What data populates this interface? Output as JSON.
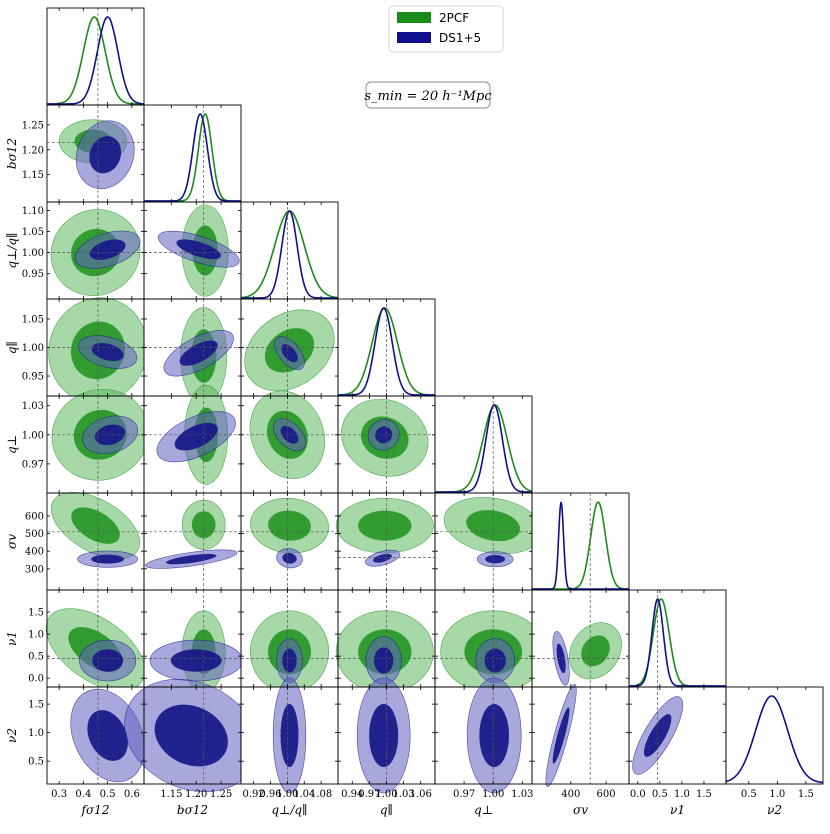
{
  "chart_data": {
    "type": "corner",
    "annotation": "s_min = 20 h⁻¹Mpc",
    "legend": [
      {
        "name": "2PCF",
        "color": "#1a8c1a"
      },
      {
        "name": "DS1+5",
        "color": "#10108c"
      }
    ],
    "params": [
      {
        "id": "fs12",
        "label": "fσ12",
        "range": [
          0.25,
          0.65
        ],
        "ticks": [
          0.3,
          0.4,
          0.5,
          0.6
        ],
        "tick_labels": [
          "0.3",
          "0.4",
          "0.5",
          "0.6"
        ],
        "truth": 0.46
      },
      {
        "id": "bs12",
        "label": "bσ12",
        "range": [
          1.095,
          1.29
        ],
        "ticks": [
          1.15,
          1.2,
          1.25
        ],
        "tick_labels": [
          "1.15",
          "1.20",
          "1.25"
        ],
        "truth": 1.215
      },
      {
        "id": "qratio",
        "label": "q⊥/q∥",
        "range": [
          0.89,
          1.12
        ],
        "ticks": [
          0.92,
          0.96,
          1.0,
          1.04,
          1.08
        ],
        "x_tick_labels": [
          "0.92",
          "0.96",
          "1.00",
          "1.04",
          "1.08"
        ],
        "y_ticks": [
          0.95,
          1.0,
          1.05,
          1.1
        ],
        "y_tick_labels": [
          "0.95",
          "1.00",
          "1.05",
          "1.10"
        ],
        "truth": 1.0
      },
      {
        "id": "qpar",
        "label": "q∥",
        "range": [
          0.915,
          1.085
        ],
        "ticks": [
          0.94,
          0.97,
          1.0,
          1.03,
          1.06
        ],
        "x_tick_labels": [
          "0.94",
          "0.97",
          "1.00",
          "1.03",
          "1.06"
        ],
        "y_ticks": [
          0.95,
          1.0,
          1.05
        ],
        "y_tick_labels": [
          "0.95",
          "1.00",
          "1.05"
        ],
        "truth": 1.0
      },
      {
        "id": "qperp",
        "label": "q⊥",
        "range": [
          0.94,
          1.04
        ],
        "ticks": [
          0.97,
          1.0,
          1.03
        ],
        "tick_labels": [
          "0.97",
          "1.00",
          "1.03"
        ],
        "truth": 1.0
      },
      {
        "id": "sigv",
        "label": "σv",
        "range": [
          180,
          730
        ],
        "ticks": [
          300,
          400,
          500,
          600
        ],
        "y_tick_labels": [
          "300",
          "400",
          "500",
          "600"
        ],
        "x_ticks": [
          400,
          600
        ],
        "x_tick_labels": [
          "400",
          "600"
        ],
        "truth": 510,
        "truth_alt": 365
      },
      {
        "id": "nu1",
        "label": "ν1",
        "range": [
          -0.2,
          2.0
        ],
        "ticks": [
          0.0,
          0.5,
          1.0,
          1.5
        ],
        "tick_labels": [
          "0.0",
          "0.5",
          "1.0",
          "1.5"
        ],
        "truth": 0.45
      },
      {
        "id": "nu2",
        "label": "ν2",
        "range": [
          0.1,
          1.8
        ],
        "ticks": [
          0.5,
          1.0,
          1.5
        ],
        "tick_labels": [
          "0.5",
          "1.0",
          "1.5"
        ]
      }
    ],
    "marginals": {
      "2PCF": [
        {
          "mean": 0.445,
          "sd": 0.045
        },
        {
          "mean": 1.218,
          "sd": 0.0135
        },
        {
          "mean": 1.005,
          "sd": 0.035
        },
        {
          "mean": 0.997,
          "sd": 0.022
        },
        {
          "mean": 1.002,
          "sd": 0.0125
        },
        {
          "mean": 555,
          "sd": 42
        },
        {
          "mean": 0.53,
          "sd": 0.18
        }
      ],
      "DS1+5": [
        {
          "mean": 0.5,
          "sd": 0.042
        },
        {
          "mean": 1.208,
          "sd": 0.0145
        },
        {
          "mean": 1.005,
          "sd": 0.018
        },
        {
          "mean": 0.995,
          "sd": 0.015
        },
        {
          "mean": 1.001,
          "sd": 0.0085
        },
        {
          "mean": 345,
          "sd": 14
        },
        {
          "mean": 0.45,
          "sd": 0.13
        },
        {
          "mean": 0.9,
          "sd": 0.28
        }
      ]
    },
    "contours": {
      "2PCF": {
        "1,0": {
          "c": [
            0.44,
            1.217
          ],
          "r": [
            0.09,
            0.028
          ],
          "a": 0
        },
        "2,0": {
          "c": [
            0.45,
            1.0
          ],
          "r": [
            0.12,
            0.065
          ],
          "a": 28
        },
        "2,1": {
          "c": [
            1.218,
            1.005
          ],
          "r": [
            0.03,
            0.07
          ],
          "a": 0
        },
        "3,0": {
          "c": [
            0.46,
            0.995
          ],
          "r": [
            0.13,
            0.06
          ],
          "a": -18
        },
        "3,1": {
          "c": [
            1.215,
            0.985
          ],
          "r": [
            0.03,
            0.055
          ],
          "a": 0
        },
        "3,2": {
          "c": [
            1.005,
            0.995
          ],
          "r": [
            0.055,
            0.055
          ],
          "a": -55
        },
        "4,0": {
          "c": [
            0.47,
            1.0
          ],
          "r": [
            0.13,
            0.03
          ],
          "a": 20
        },
        "4,1": {
          "c": [
            1.22,
            1.0
          ],
          "r": [
            0.028,
            0.033
          ],
          "a": 0
        },
        "4,2": {
          "c": [
            1.0,
            1.0
          ],
          "r": [
            0.055,
            0.03
          ],
          "a": 22
        },
        "4,3": {
          "c": [
            0.997,
            0.997
          ],
          "r": [
            0.05,
            0.025
          ],
          "a": -22
        },
        "5,0": {
          "c": [
            0.45,
            545
          ],
          "r": [
            0.13,
            95
          ],
          "a": -30
        },
        "5,1": {
          "c": [
            1.215,
            550
          ],
          "r": [
            0.028,
            90
          ],
          "a": 0
        },
        "5,2": {
          "c": [
            1.005,
            545
          ],
          "r": [
            0.06,
            100
          ],
          "a": -5
        },
        "5,3": {
          "c": [
            0.997,
            545
          ],
          "r": [
            0.055,
            100
          ],
          "a": 0
        },
        "5,4": {
          "c": [
            1.0,
            545
          ],
          "r": [
            0.033,
            100
          ],
          "a": -10
        },
        "6,0": {
          "c": [
            0.45,
            0.65
          ],
          "r": [
            0.15,
            0.45
          ],
          "a": -35
        },
        "6,1": {
          "c": [
            1.215,
            0.6
          ],
          "r": [
            0.028,
            0.6
          ],
          "a": 0
        },
        "6,2": {
          "c": [
            1.005,
            0.6
          ],
          "r": [
            0.06,
            0.6
          ],
          "a": -5
        },
        "6,3": {
          "c": [
            0.997,
            0.6
          ],
          "r": [
            0.055,
            0.6
          ],
          "a": 0
        },
        "6,4": {
          "c": [
            1.0,
            0.6
          ],
          "r": [
            0.035,
            0.6
          ],
          "a": 0
        },
        "6,5": {
          "c": [
            540,
            0.62
          ],
          "r": [
            110,
            0.35
          ],
          "a": 55
        }
      },
      "DS1+5": {
        "1,0": {
          "c": [
            0.49,
            1.19
          ],
          "r": [
            0.075,
            0.045
          ],
          "a": -20
        },
        "2,0": {
          "c": [
            0.5,
            1.007
          ],
          "r": [
            0.09,
            0.025
          ],
          "a": 18
        },
        "2,1": {
          "c": [
            1.205,
            1.008
          ],
          "r": [
            0.055,
            0.02
          ],
          "a": -18
        },
        "3,0": {
          "c": [
            0.5,
            0.992
          ],
          "r": [
            0.08,
            0.017
          ],
          "a": -15
        },
        "3,1": {
          "c": [
            1.205,
            0.99
          ],
          "r": [
            0.05,
            0.018
          ],
          "a": 28
        },
        "3,2": {
          "c": [
            1.005,
            0.99
          ],
          "r": [
            0.03,
            0.012
          ],
          "a": -50
        },
        "4,0": {
          "c": [
            0.51,
            1.0
          ],
          "r": [
            0.075,
            0.012
          ],
          "a": 15
        },
        "4,1": {
          "c": [
            1.2,
            0.998
          ],
          "r": [
            0.055,
            0.013
          ],
          "a": 25
        },
        "4,2": {
          "c": [
            1.005,
            1.0
          ],
          "r": [
            0.018,
            0.013
          ],
          "a": 45
        },
        "4,3": {
          "c": [
            0.995,
            1.0
          ],
          "r": [
            0.018,
            0.01
          ],
          "a": 40
        },
        "5,0": {
          "c": [
            0.5,
            355
          ],
          "r": [
            0.08,
            30
          ],
          "a": 0
        },
        "5,1": {
          "c": [
            1.19,
            355
          ],
          "r": [
            0.06,
            25
          ],
          "a": 8
        },
        "5,2": {
          "c": [
            1.005,
            360
          ],
          "r": [
            0.02,
            35
          ],
          "a": -10
        },
        "5,3": {
          "c": [
            0.993,
            360
          ],
          "r": [
            0.02,
            25
          ],
          "a": 15
        },
        "5,4": {
          "c": [
            1.002,
            355
          ],
          "r": [
            0.012,
            28
          ],
          "a": 0
        },
        "6,0": {
          "c": [
            0.5,
            0.4
          ],
          "r": [
            0.075,
            0.3
          ],
          "a": 0
        },
        "6,1": {
          "c": [
            1.2,
            0.4
          ],
          "r": [
            0.06,
            0.3
          ],
          "a": 0
        },
        "6,2": {
          "c": [
            1.005,
            0.4
          ],
          "r": [
            0.02,
            0.32
          ],
          "a": 0
        },
        "6,3": {
          "c": [
            0.995,
            0.4
          ],
          "r": [
            0.02,
            0.35
          ],
          "a": 0
        },
        "6,4": {
          "c": [
            1.002,
            0.4
          ],
          "r": [
            0.013,
            0.32
          ],
          "a": 0
        },
        "6,5": {
          "c": [
            345,
            0.45
          ],
          "r": [
            25,
            0.4
          ],
          "a": 10
        },
        "7,0": {
          "c": [
            0.5,
            0.95
          ],
          "r": [
            0.09,
            0.55
          ],
          "a": 25
        },
        "7,1": {
          "c": [
            1.19,
            0.95
          ],
          "r": [
            0.09,
            0.6
          ],
          "a": -25
        },
        "7,2": {
          "c": [
            1.005,
            0.95
          ],
          "r": [
            0.025,
            0.65
          ],
          "a": 0
        },
        "7,3": {
          "c": [
            0.995,
            0.95
          ],
          "r": [
            0.03,
            0.65
          ],
          "a": 0
        },
        "7,4": {
          "c": [
            1.001,
            0.95
          ],
          "r": [
            0.018,
            0.65
          ],
          "a": 0
        },
        "7,5": {
          "c": [
            345,
            0.95
          ],
          "r": [
            25,
            0.6
          ],
          "a": -15
        },
        "7,6": {
          "c": [
            0.45,
            0.95
          ],
          "r": [
            0.2,
            0.5
          ],
          "a": -30
        }
      }
    }
  }
}
